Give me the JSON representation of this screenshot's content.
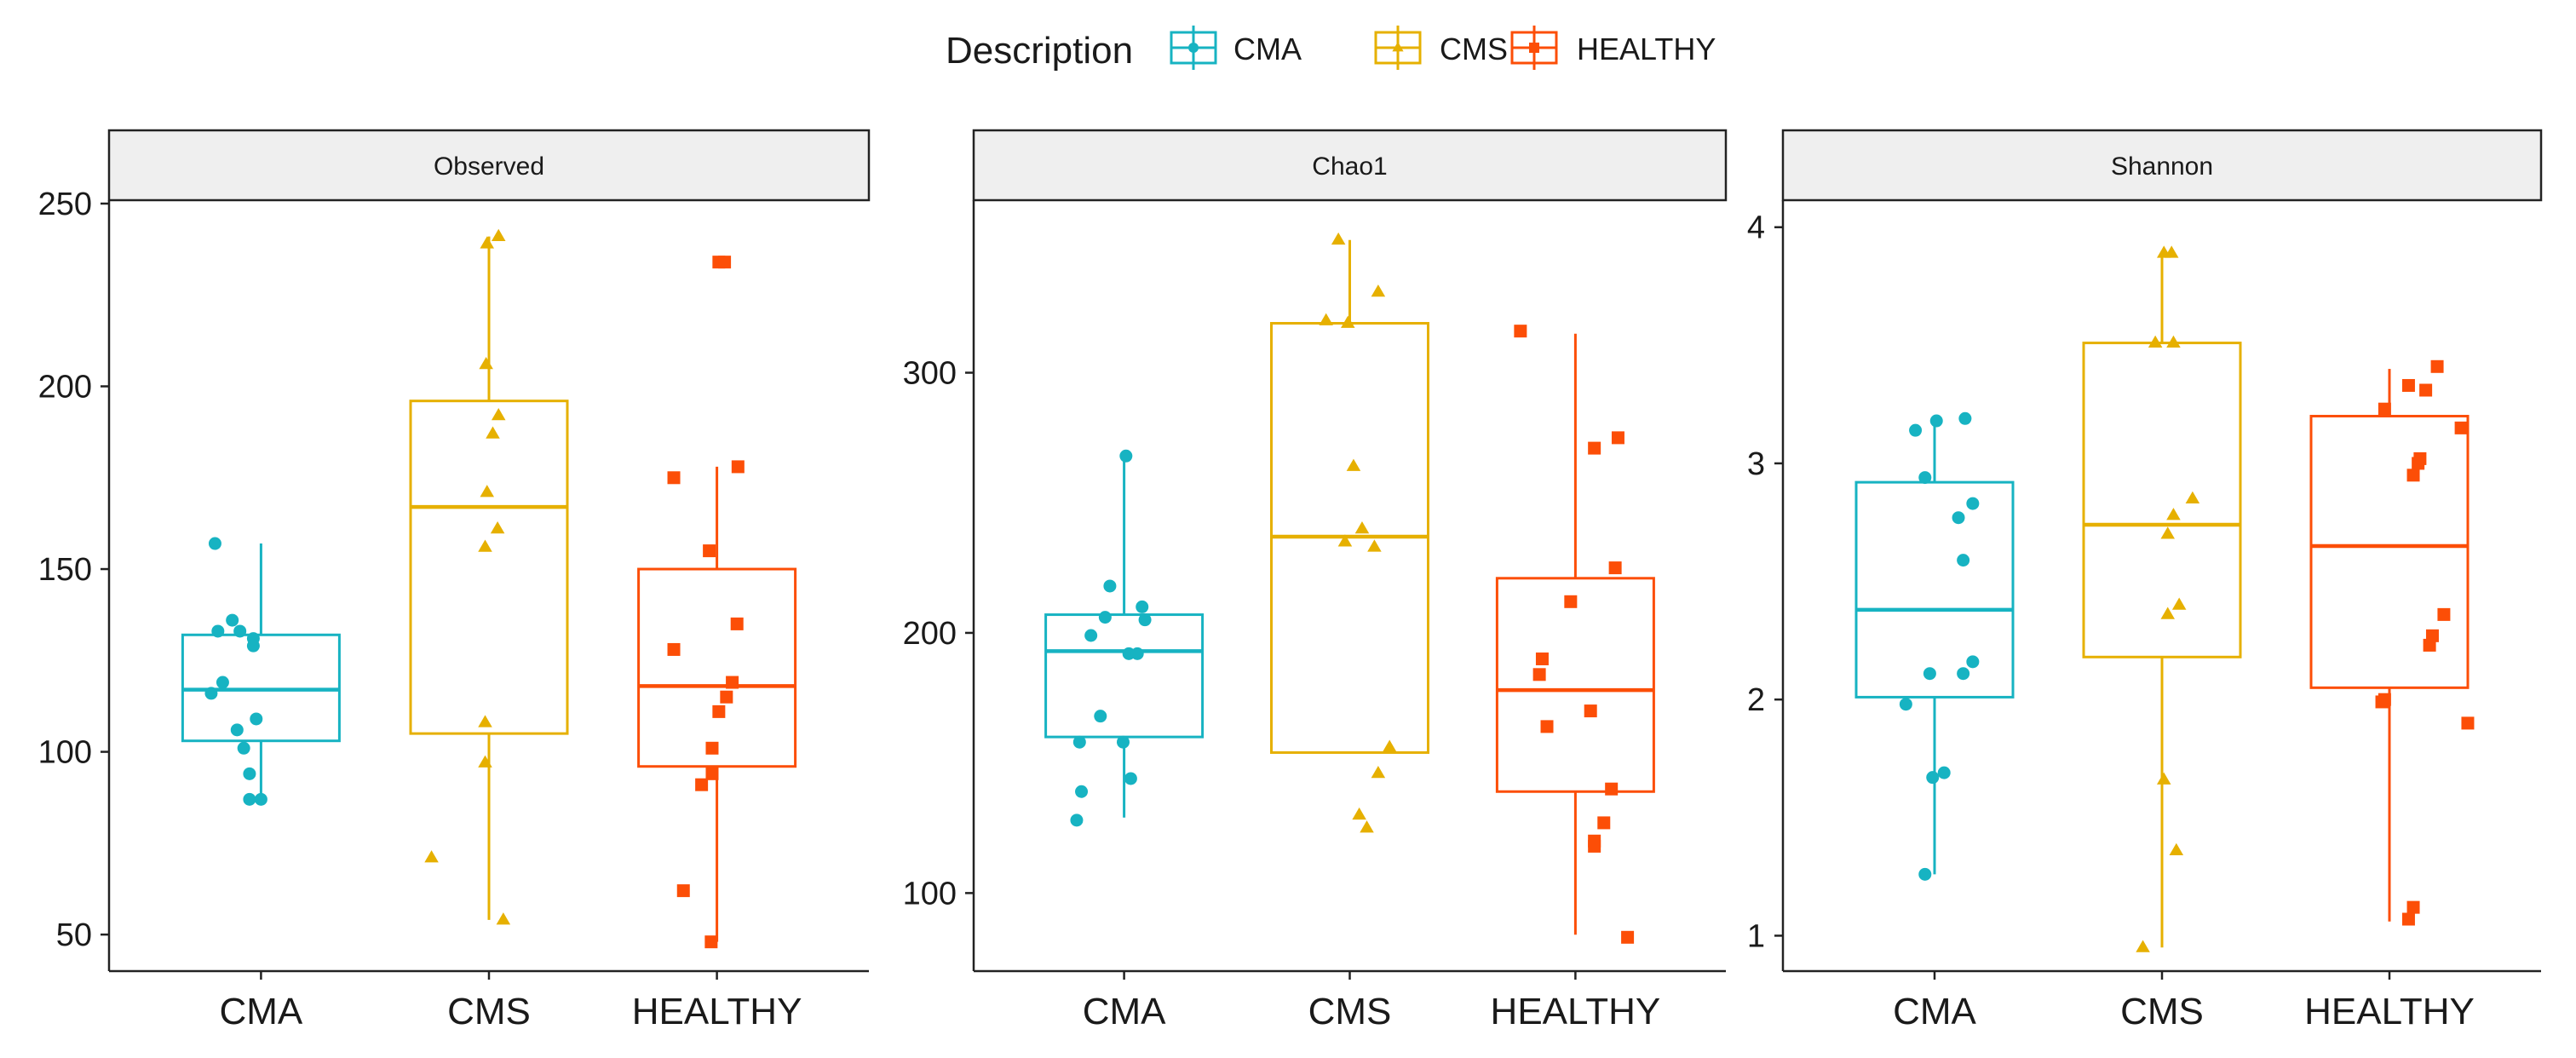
{
  "chart_data": {
    "type": "box",
    "legend": {
      "title": "Description",
      "position": "top",
      "entries": [
        {
          "label": "CMA",
          "color": "#17b3c2",
          "shape": "circle"
        },
        {
          "label": "CMS",
          "color": "#e6b000",
          "shape": "triangle"
        },
        {
          "label": "HEALTHY",
          "color": "#fc4e07",
          "shape": "square"
        }
      ]
    },
    "categories": [
      "CMA",
      "CMS",
      "HEALTHY"
    ],
    "panels": [
      {
        "title": "Observed",
        "ylim": [
          40,
          250
        ],
        "yticks": [
          50,
          100,
          150,
          200,
          250
        ],
        "groups": [
          {
            "name": "CMA",
            "box": {
              "q1": 103,
              "median": 117,
              "q3": 132,
              "whisker_low": 87,
              "whisker_high": 157
            },
            "points": [
              [
                -0.48,
                157
              ],
              [
                -0.3,
                136
              ],
              [
                -0.45,
                133
              ],
              [
                -0.22,
                133
              ],
              [
                -0.08,
                131
              ],
              [
                -0.08,
                129
              ],
              [
                -0.4,
                119
              ],
              [
                -0.52,
                116
              ],
              [
                -0.05,
                109
              ],
              [
                -0.25,
                106
              ],
              [
                -0.18,
                101
              ],
              [
                -0.12,
                94
              ],
              [
                -0.12,
                87
              ],
              [
                0.0,
                87
              ]
            ]
          },
          {
            "name": "CMS",
            "box": {
              "q1": 105,
              "median": 167,
              "q3": 196,
              "whisker_low": 54,
              "whisker_high": 241
            },
            "points": [
              [
                0.1,
                241
              ],
              [
                -0.02,
                239
              ],
              [
                -0.03,
                206
              ],
              [
                0.1,
                192
              ],
              [
                0.04,
                187
              ],
              [
                -0.02,
                171
              ],
              [
                0.09,
                161
              ],
              [
                -0.04,
                156
              ],
              [
                -0.04,
                108
              ],
              [
                -0.04,
                97
              ],
              [
                -0.6,
                71
              ],
              [
                0.15,
                54
              ]
            ]
          },
          {
            "name": "HEALTHY",
            "box": {
              "q1": 96,
              "median": 118,
              "q3": 150,
              "whisker_low": 48,
              "whisker_high": 178
            },
            "points": [
              [
                0.02,
                234
              ],
              [
                0.08,
                234
              ],
              [
                0.22,
                178
              ],
              [
                -0.45,
                175
              ],
              [
                -0.08,
                155
              ],
              [
                0.21,
                135
              ],
              [
                -0.45,
                128
              ],
              [
                0.16,
                119
              ],
              [
                0.1,
                115
              ],
              [
                0.02,
                111
              ],
              [
                -0.05,
                101
              ],
              [
                -0.05,
                94
              ],
              [
                -0.16,
                91
              ],
              [
                -0.35,
                62
              ],
              [
                -0.06,
                48
              ]
            ]
          }
        ]
      },
      {
        "title": "Chao1",
        "ylim": [
          70,
          365
        ],
        "yticks": [
          100,
          200,
          300
        ],
        "groups": [
          {
            "name": "CMA",
            "box": {
              "q1": 160,
              "median": 193,
              "q3": 207,
              "whisker_low": 129,
              "whisker_high": 268
            },
            "points": [
              [
                0.02,
                268
              ],
              [
                -0.15,
                218
              ],
              [
                0.19,
                210
              ],
              [
                -0.2,
                206
              ],
              [
                0.22,
                205
              ],
              [
                -0.35,
                199
              ],
              [
                0.05,
                192
              ],
              [
                0.14,
                192
              ],
              [
                -0.25,
                168
              ],
              [
                -0.47,
                158
              ],
              [
                -0.01,
                158
              ],
              [
                0.07,
                144
              ],
              [
                -0.45,
                139
              ],
              [
                -0.5,
                128
              ]
            ]
          },
          {
            "name": "CMS",
            "box": {
              "q1": 154,
              "median": 237,
              "q3": 319,
              "whisker_low": 154,
              "whisker_high": 351
            },
            "points": [
              [
                -0.12,
                351
              ],
              [
                0.3,
                331
              ],
              [
                -0.25,
                320
              ],
              [
                -0.02,
                319
              ],
              [
                0.04,
                264
              ],
              [
                0.13,
                240
              ],
              [
                -0.05,
                235
              ],
              [
                0.26,
                233
              ],
              [
                0.42,
                156
              ],
              [
                0.3,
                146
              ],
              [
                0.1,
                130
              ],
              [
                0.18,
                125
              ]
            ]
          },
          {
            "name": "HEALTHY",
            "box": {
              "q1": 139,
              "median": 178,
              "q3": 221,
              "whisker_low": 84,
              "whisker_high": 315
            },
            "points": [
              [
                -0.58,
                316
              ],
              [
                0.45,
                275
              ],
              [
                0.2,
                271
              ],
              [
                0.42,
                225
              ],
              [
                -0.05,
                212
              ],
              [
                -0.35,
                190
              ],
              [
                -0.38,
                184
              ],
              [
                0.16,
                170
              ],
              [
                -0.3,
                164
              ],
              [
                0.38,
                140
              ],
              [
                0.3,
                127
              ],
              [
                0.2,
                120
              ],
              [
                0.2,
                118
              ],
              [
                0.55,
                83
              ]
            ]
          }
        ]
      },
      {
        "title": "Shannon",
        "ylim": [
          0.85,
          4.1
        ],
        "yticks": [
          1,
          2,
          3,
          4
        ],
        "groups": [
          {
            "name": "CMA",
            "box": {
              "q1": 2.01,
              "median": 2.38,
              "q3": 2.92,
              "whisker_low": 1.26,
              "whisker_high": 3.19
            },
            "points": [
              [
                0.32,
                3.19
              ],
              [
                0.02,
                3.18
              ],
              [
                -0.2,
                3.14
              ],
              [
                -0.1,
                2.94
              ],
              [
                0.4,
                2.83
              ],
              [
                0.25,
                2.77
              ],
              [
                0.3,
                2.59
              ],
              [
                0.4,
                2.16
              ],
              [
                -0.05,
                2.11
              ],
              [
                0.3,
                2.11
              ],
              [
                -0.3,
                1.98
              ],
              [
                -0.02,
                1.67
              ],
              [
                0.1,
                1.69
              ],
              [
                -0.1,
                1.26
              ]
            ]
          },
          {
            "name": "CMS",
            "box": {
              "q1": 2.18,
              "median": 2.74,
              "q3": 3.51,
              "whisker_low": 0.95,
              "whisker_high": 3.89
            },
            "points": [
              [
                0.02,
                3.89
              ],
              [
                0.1,
                3.89
              ],
              [
                -0.07,
                3.51
              ],
              [
                0.12,
                3.51
              ],
              [
                0.32,
                2.85
              ],
              [
                0.12,
                2.78
              ],
              [
                0.06,
                2.7
              ],
              [
                0.18,
                2.4
              ],
              [
                0.06,
                2.36
              ],
              [
                0.02,
                1.66
              ],
              [
                0.15,
                1.36
              ],
              [
                -0.2,
                0.95
              ]
            ]
          },
          {
            "name": "HEALTHY",
            "box": {
              "q1": 2.05,
              "median": 2.65,
              "q3": 3.2,
              "whisker_low": 1.06,
              "whisker_high": 3.4
            },
            "points": [
              [
                0.5,
                3.41
              ],
              [
                0.38,
                3.31
              ],
              [
                0.2,
                3.33
              ],
              [
                -0.05,
                3.23
              ],
              [
                0.75,
                3.15
              ],
              [
                0.32,
                3.02
              ],
              [
                0.3,
                3.0
              ],
              [
                0.25,
                2.95
              ],
              [
                0.57,
                2.36
              ],
              [
                0.45,
                2.27
              ],
              [
                0.42,
                2.23
              ],
              [
                -0.05,
                2.0
              ],
              [
                -0.08,
                1.99
              ],
              [
                0.82,
                1.9
              ],
              [
                0.25,
                1.12
              ],
              [
                0.2,
                1.07
              ]
            ]
          }
        ]
      }
    ],
    "grid": false
  }
}
